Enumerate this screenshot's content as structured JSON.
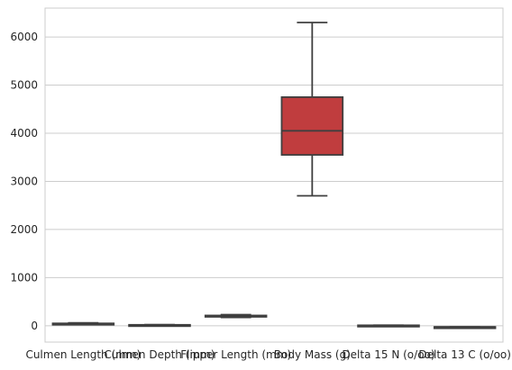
{
  "chart_data": {
    "type": "box",
    "title": "",
    "xlabel": "",
    "ylabel": "",
    "ylim": [
      -340,
      6600
    ],
    "yticks": [
      0,
      1000,
      2000,
      3000,
      4000,
      5000,
      6000
    ],
    "grid": "horizontal",
    "categories": [
      "Culmen Length (mm)",
      "Culmen Depth (mm)",
      "Flipper Length (mm)",
      "Body Mass (g)",
      "Delta 15 N (o/oo)",
      "Delta 13 C (o/oo)"
    ],
    "boxes": [
      {
        "category": "Culmen Length (mm)",
        "whislo": 32,
        "q1": 39,
        "med": 44,
        "q3": 49,
        "whishi": 60,
        "color": "#3a76af"
      },
      {
        "category": "Culmen Depth (mm)",
        "whislo": 13,
        "q1": 15,
        "med": 17,
        "q3": 19,
        "whishi": 22,
        "color": "#e1812c"
      },
      {
        "category": "Flipper Length (mm)",
        "whislo": 172,
        "q1": 190,
        "med": 197,
        "q3": 213,
        "whishi": 231,
        "color": "#3a923a"
      },
      {
        "category": "Body Mass (g)",
        "whislo": 2700,
        "q1": 3550,
        "med": 4050,
        "q3": 4750,
        "whishi": 6300,
        "color": "#c03d3e"
      },
      {
        "category": "Delta 15 N (o/oo)",
        "whislo": 7.6,
        "q1": 8.3,
        "med": 8.7,
        "q3": 9.2,
        "whishi": 10.0,
        "color": "#9372b2"
      },
      {
        "category": "Delta 13 C (o/oo)",
        "whislo": -27.0,
        "q1": -26.3,
        "med": -25.8,
        "q3": -25.1,
        "whishi": -23.8,
        "color": "#845b53"
      }
    ]
  }
}
